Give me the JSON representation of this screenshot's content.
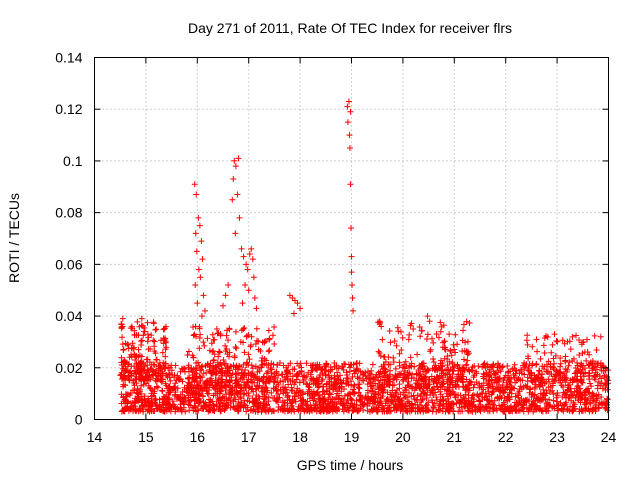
{
  "chart_data": {
    "type": "scatter",
    "title": "Day 271 of 2011, Rate Of TEC Index for receiver flrs",
    "xlabel": "GPS time / hours",
    "ylabel": "ROTI / TECUs",
    "xlim": [
      14,
      24
    ],
    "ylim": [
      0,
      0.14
    ],
    "x_ticks": [
      14,
      15,
      16,
      17,
      18,
      19,
      20,
      21,
      22,
      23,
      24
    ],
    "x_tick_labels": [
      "14",
      "15",
      "16",
      "17",
      "18",
      "19",
      "20",
      "21",
      "22",
      "23",
      "24"
    ],
    "y_ticks": [
      0,
      0.02,
      0.04,
      0.06,
      0.08,
      0.1,
      0.12,
      0.14
    ],
    "y_tick_labels": [
      "0",
      "0.02",
      "0.04",
      "0.06",
      "0.08",
      "0.1",
      "0.12",
      "0.14"
    ],
    "grid": true,
    "marker": "+",
    "series": [
      {
        "name": "ROTI",
        "color": "#ff0000",
        "bands": [
          {
            "x_range": [
              14.5,
              24.0
            ],
            "y_range": [
              0.003,
              0.022
            ],
            "count": 2600
          },
          {
            "x_range": [
              14.5,
              15.4
            ],
            "y_range": [
              0.015,
              0.038
            ],
            "count": 160
          },
          {
            "x_range": [
              15.8,
              17.5
            ],
            "y_range": [
              0.012,
              0.036
            ],
            "count": 200
          },
          {
            "x_range": [
              19.5,
              21.3
            ],
            "y_range": [
              0.012,
              0.038
            ],
            "count": 170
          },
          {
            "x_range": [
              22.4,
              23.8
            ],
            "y_range": [
              0.015,
              0.033
            ],
            "count": 90
          }
        ],
        "points": [
          [
            15.95,
            0.091
          ],
          [
            15.98,
            0.087
          ],
          [
            16.02,
            0.078
          ],
          [
            16.05,
            0.075
          ],
          [
            15.97,
            0.072
          ],
          [
            16.08,
            0.069
          ],
          [
            15.99,
            0.065
          ],
          [
            16.1,
            0.062
          ],
          [
            16.03,
            0.058
          ],
          [
            16.06,
            0.055
          ],
          [
            15.96,
            0.052
          ],
          [
            16.12,
            0.048
          ],
          [
            16.0,
            0.045
          ],
          [
            16.15,
            0.042
          ],
          [
            16.09,
            0.04
          ],
          [
            16.72,
            0.1
          ],
          [
            16.75,
            0.098
          ],
          [
            16.8,
            0.101
          ],
          [
            16.7,
            0.093
          ],
          [
            16.68,
            0.085
          ],
          [
            16.78,
            0.087
          ],
          [
            16.82,
            0.078
          ],
          [
            16.74,
            0.072
          ],
          [
            16.86,
            0.066
          ],
          [
            16.9,
            0.063
          ],
          [
            16.95,
            0.06
          ],
          [
            17.02,
            0.064
          ],
          [
            17.05,
            0.066
          ],
          [
            17.08,
            0.062
          ],
          [
            16.98,
            0.058
          ],
          [
            17.1,
            0.055
          ],
          [
            16.93,
            0.052
          ],
          [
            17.0,
            0.05
          ],
          [
            17.12,
            0.047
          ],
          [
            16.88,
            0.045
          ],
          [
            17.15,
            0.043
          ],
          [
            16.6,
            0.052
          ],
          [
            16.55,
            0.048
          ],
          [
            16.5,
            0.044
          ],
          [
            17.8,
            0.048
          ],
          [
            17.85,
            0.047
          ],
          [
            17.9,
            0.046
          ],
          [
            17.95,
            0.045
          ],
          [
            18.0,
            0.043
          ],
          [
            17.88,
            0.041
          ],
          [
            18.92,
            0.121
          ],
          [
            18.95,
            0.123
          ],
          [
            18.98,
            0.119
          ],
          [
            18.93,
            0.115
          ],
          [
            18.96,
            0.11
          ],
          [
            18.97,
            0.105
          ],
          [
            18.98,
            0.091
          ],
          [
            18.99,
            0.074
          ],
          [
            19.0,
            0.063
          ],
          [
            19.0,
            0.057
          ],
          [
            19.01,
            0.052
          ],
          [
            19.02,
            0.047
          ],
          [
            19.03,
            0.042
          ],
          [
            14.55,
            0.039
          ],
          [
            14.92,
            0.039
          ],
          [
            19.55,
            0.038
          ],
          [
            20.48,
            0.04
          ],
          [
            20.52,
            0.038
          ],
          [
            22.6,
            0.031
          ],
          [
            22.95,
            0.033
          ],
          [
            23.85,
            0.032
          ],
          [
            20.2,
            0.035
          ],
          [
            20.9,
            0.033
          ]
        ]
      }
    ]
  }
}
